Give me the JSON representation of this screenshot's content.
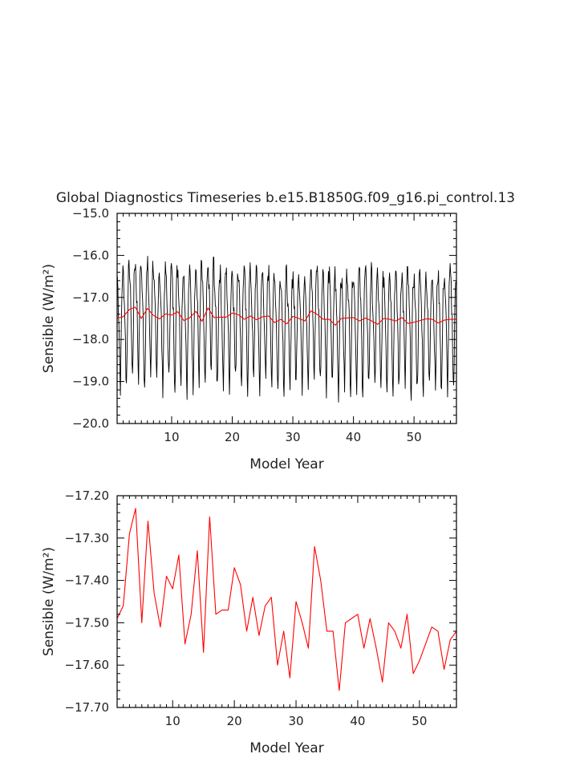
{
  "figure": {
    "title": "Global Diagnostics Timeseries b.e15.B1850G.f09_g16.pi_control.13"
  },
  "colors": {
    "monthly_line": "#000000",
    "annual_line": "#ff0000",
    "axis": "#000000"
  },
  "chart_data": [
    {
      "type": "line",
      "xlabel": "Model Year",
      "ylabel": "Sensible (W/m²)",
      "xlim": [
        1,
        57
      ],
      "ylim": [
        -20.0,
        -15.0
      ],
      "xticks": [
        10,
        20,
        30,
        40,
        50
      ],
      "yticks": [
        -20.0,
        -19.0,
        -18.0,
        -17.0,
        -16.0,
        -15.0
      ],
      "ytick_labels": [
        "−20.0",
        "−19.0",
        "−18.0",
        "−17.0",
        "−16.0",
        "−15.0"
      ],
      "grid": false,
      "series": [
        {
          "color": "#000000",
          "resolution": "monthly",
          "x_start": 1.0417,
          "x_step": 0.0833,
          "seasonal_cycle": [
            -16.6,
            -16.9,
            -17.3,
            -17.6,
            -18.2,
            -18.9,
            -19.2,
            -18.6,
            -17.7,
            -17.0,
            -16.6,
            -16.5
          ],
          "values_summary": {
            "min": -19.85,
            "max": -15.85
          }
        },
        {
          "color": "#ff0000",
          "resolution": "annual",
          "x": [
            1,
            2,
            3,
            4,
            5,
            6,
            7,
            8,
            9,
            10,
            11,
            12,
            13,
            14,
            15,
            16,
            17,
            18,
            19,
            20,
            21,
            22,
            23,
            24,
            25,
            26,
            27,
            28,
            29,
            30,
            31,
            32,
            33,
            34,
            35,
            36,
            37,
            38,
            39,
            40,
            41,
            42,
            43,
            44,
            45,
            46,
            47,
            48,
            49,
            50,
            51,
            52,
            53,
            54,
            55,
            56,
            57
          ],
          "values": [
            -17.49,
            -17.46,
            -17.29,
            -17.23,
            -17.5,
            -17.26,
            -17.43,
            -17.51,
            -17.39,
            -17.42,
            -17.34,
            -17.55,
            -17.48,
            -17.33,
            -17.57,
            -17.25,
            -17.48,
            -17.47,
            -17.47,
            -17.37,
            -17.41,
            -17.52,
            -17.44,
            -17.53,
            -17.46,
            -17.44,
            -17.6,
            -17.52,
            -17.63,
            -17.45,
            -17.5,
            -17.56,
            -17.32,
            -17.4,
            -17.52,
            -17.52,
            -17.66,
            -17.5,
            -17.49,
            -17.48,
            -17.56,
            -17.49,
            -17.56,
            -17.64,
            -17.5,
            -17.52,
            -17.56,
            -17.48,
            -17.62,
            -17.59,
            -17.55,
            -17.51,
            -17.52,
            -17.61,
            -17.54,
            -17.52,
            -17.52
          ]
        }
      ]
    },
    {
      "type": "line",
      "xlabel": "Model Year",
      "ylabel": "Sensible (W/m²)",
      "xlim": [
        1,
        56
      ],
      "ylim": [
        -17.7,
        -17.2
      ],
      "xticks": [
        10,
        20,
        30,
        40,
        50
      ],
      "yticks": [
        -17.7,
        -17.6,
        -17.5,
        -17.4,
        -17.3,
        -17.2
      ],
      "ytick_labels": [
        "−17.70",
        "−17.60",
        "−17.50",
        "−17.40",
        "−17.30",
        "−17.20"
      ],
      "grid": false,
      "series": [
        {
          "color": "#ff0000",
          "resolution": "annual",
          "x": [
            1,
            2,
            3,
            4,
            5,
            6,
            7,
            8,
            9,
            10,
            11,
            12,
            13,
            14,
            15,
            16,
            17,
            18,
            19,
            20,
            21,
            22,
            23,
            24,
            25,
            26,
            27,
            28,
            29,
            30,
            31,
            32,
            33,
            34,
            35,
            36,
            37,
            38,
            39,
            40,
            41,
            42,
            43,
            44,
            45,
            46,
            47,
            48,
            49,
            50,
            51,
            52,
            53,
            54,
            55,
            56
          ],
          "values": [
            -17.49,
            -17.46,
            -17.29,
            -17.23,
            -17.5,
            -17.26,
            -17.43,
            -17.51,
            -17.39,
            -17.42,
            -17.34,
            -17.55,
            -17.48,
            -17.33,
            -17.57,
            -17.25,
            -17.48,
            -17.47,
            -17.47,
            -17.37,
            -17.41,
            -17.52,
            -17.44,
            -17.53,
            -17.46,
            -17.44,
            -17.6,
            -17.52,
            -17.63,
            -17.45,
            -17.5,
            -17.56,
            -17.32,
            -17.4,
            -17.52,
            -17.52,
            -17.66,
            -17.5,
            -17.49,
            -17.48,
            -17.56,
            -17.49,
            -17.56,
            -17.64,
            -17.5,
            -17.52,
            -17.56,
            -17.48,
            -17.62,
            -17.59,
            -17.55,
            -17.51,
            -17.52,
            -17.61,
            -17.54,
            -17.52
          ]
        }
      ]
    }
  ]
}
